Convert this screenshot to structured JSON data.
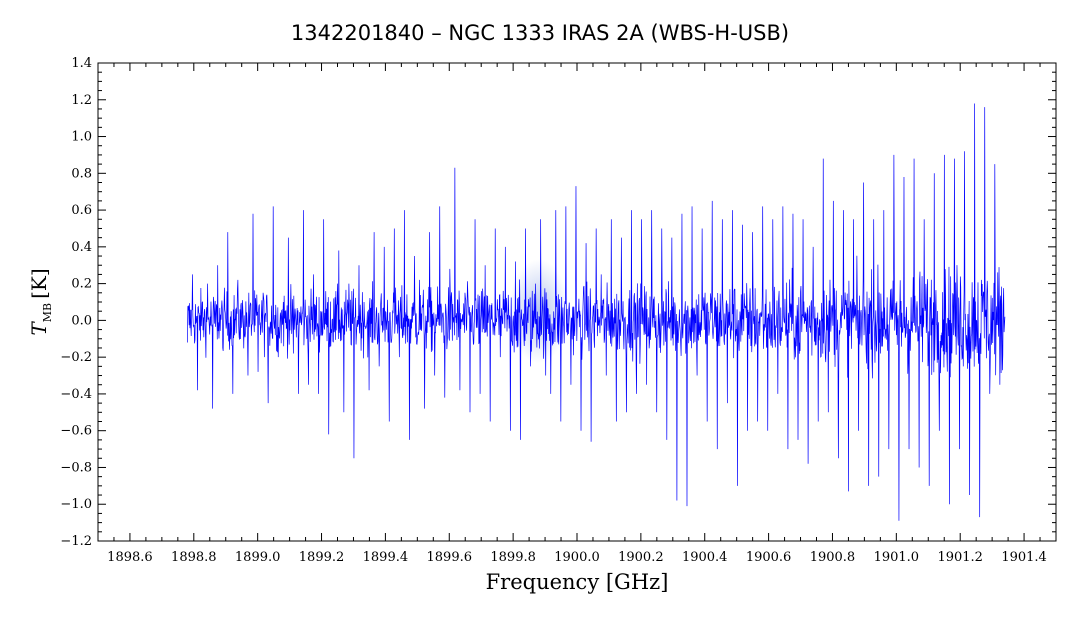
{
  "chart_data": {
    "type": "line",
    "title": "1342201840 – NGC 1333 IRAS 2A (WBS-H-USB)",
    "xlabel": "Frequency [GHz]",
    "ylabel_symbol": "T",
    "ylabel_subscript": "MB",
    "ylabel_unit": "[K]",
    "xlim": [
      1898.5,
      1901.5
    ],
    "ylim": [
      -1.2,
      1.4
    ],
    "xticks": [
      "1898.6",
      "1898.8",
      "1899.0",
      "1899.2",
      "1899.4",
      "1899.6",
      "1899.8",
      "1900.0",
      "1900.2",
      "1900.4",
      "1900.6",
      "1900.8",
      "1901.0",
      "1901.2",
      "1901.4"
    ],
    "yticks": [
      "−1.2",
      "−1.0",
      "−0.8",
      "−0.6",
      "−0.4",
      "−0.2",
      "0.0",
      "0.2",
      "0.4",
      "0.6",
      "0.8",
      "1.0",
      "1.2",
      "1.4"
    ],
    "series_color": "#0000ff",
    "highlight_color": "#9fb4ea",
    "highlight": {
      "x": 1899.88,
      "y": 0.05
    },
    "series": [
      {
        "x_start": 1898.78,
        "x_end": 1901.34,
        "noise_envelope": [
          [
            1898.78,
            0.2
          ],
          [
            1899.5,
            0.22
          ],
          [
            1900.3,
            0.25
          ],
          [
            1900.8,
            0.3
          ],
          [
            1901.34,
            0.4
          ]
        ],
        "values": [
          -0.12,
          0.25,
          -0.38,
          0.1,
          0.2,
          -0.48,
          0.3,
          -0.15,
          0.48,
          -0.4,
          0.22,
          0.05,
          -0.3,
          0.58,
          -0.28,
          0.15,
          -0.45,
          0.62,
          -0.2,
          0.1,
          0.45,
          -0.18,
          -0.4,
          0.6,
          -0.35,
          0.25,
          -0.4,
          0.55,
          -0.62,
          0.12,
          0.38,
          -0.5,
          0.2,
          -0.75,
          0.3,
          0.1,
          -0.38,
          0.48,
          -0.25,
          0.4,
          -0.55,
          0.5,
          -0.2,
          0.6,
          -0.65,
          0.35,
          0.22,
          -0.48,
          0.48,
          -0.3,
          0.62,
          -0.42,
          0.28,
          0.83,
          -0.38,
          0.15,
          -0.5,
          0.55,
          -0.4,
          0.3,
          -0.55,
          0.5,
          -0.2,
          0.4,
          -0.6,
          0.32,
          -0.65,
          0.5,
          -0.25,
          0.2,
          0.55,
          -0.3,
          -0.4,
          0.6,
          -0.55,
          0.62,
          -0.35,
          0.73,
          -0.6,
          0.42,
          -0.66,
          0.5,
          0.25,
          -0.3,
          0.55,
          -0.55,
          0.45,
          -0.5,
          0.6,
          -0.4,
          0.55,
          -0.35,
          0.6,
          -0.5,
          0.5,
          -0.65,
          0.45,
          -0.98,
          0.58,
          -1.01,
          0.62,
          -0.3,
          0.5,
          -0.55,
          0.65,
          -0.7,
          0.55,
          -0.45,
          0.6,
          -0.9,
          0.52,
          -0.6,
          0.48,
          -0.55,
          0.62,
          -0.6,
          0.55,
          -0.4,
          0.62,
          -0.7,
          0.58,
          -0.65,
          0.55,
          -0.78,
          0.4,
          -0.55,
          0.88,
          -0.5,
          0.65,
          -0.75,
          0.6,
          -0.93,
          0.55,
          -0.6,
          0.75,
          -0.9,
          0.55,
          -0.85,
          0.6,
          -0.7,
          0.9,
          -1.09,
          0.78,
          -0.7,
          0.88,
          -0.8,
          0.55,
          -0.9,
          0.8,
          -0.6,
          0.9,
          -1.0,
          0.88,
          -0.7,
          0.92,
          -0.95,
          1.18,
          -1.07,
          1.16,
          -0.4,
          0.85,
          -0.35,
          0.02
        ]
      }
    ]
  }
}
